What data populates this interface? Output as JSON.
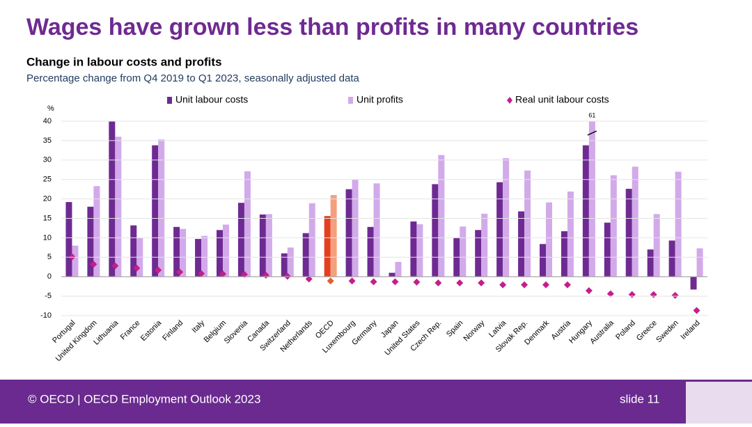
{
  "slide": {
    "title": "Wages have grown less than profits in many countries",
    "footer": "© OECD | OECD Employment Outlook 2023",
    "slide_number": "slide 11"
  },
  "chart_data": {
    "type": "bar",
    "title": "Change in labour costs and profits",
    "subtitle": "Percentage change from Q4 2019 to Q1 2023, seasonally adjusted data",
    "y_label": "%",
    "categories": [
      "Portugal",
      "United Kingdom",
      "Lithuania",
      "France",
      "Estonia",
      "Finland",
      "Italy",
      "Belgium",
      "Slovenia",
      "Canada",
      "Switzerland",
      "Netherlands",
      "OECD",
      "Luxembourg",
      "Germany",
      "Japan",
      "United States",
      "Czech Rep.",
      "Spain",
      "Norway",
      "Latvia",
      "Slovak Rep.",
      "Denmark",
      "Austria",
      "Hungary",
      "Australia",
      "Poland",
      "Greece",
      "Sweden",
      "Ireland"
    ],
    "highlight": 12,
    "series": [
      {
        "name": "Unit labour costs",
        "kind": "bar",
        "color": "#6e2a92",
        "highlight_color": "#e2401f",
        "values": [
          19.2,
          18,
          40,
          13.2,
          33.8,
          12.8,
          9.7,
          12,
          19,
          16,
          6,
          11.2,
          15.6,
          22.5,
          12.8,
          1,
          14.2,
          23.8,
          10,
          12,
          24.3,
          16.8,
          8.4,
          11.7,
          33.8,
          13.9,
          22.6,
          7,
          9.3,
          -3.3
        ]
      },
      {
        "name": "Unit profits",
        "kind": "bar",
        "color": "#d2aaea",
        "highlight_color": "#f4a07c",
        "values": [
          8,
          23.3,
          36,
          9.9,
          35.3,
          12.3,
          10.5,
          13.4,
          27.1,
          16.1,
          7.5,
          18.9,
          21,
          25,
          24,
          3.8,
          13.5,
          31.3,
          12.9,
          16.2,
          30.5,
          27.3,
          19.1,
          21.9,
          61,
          26.1,
          28.3,
          16.1,
          27,
          7.3
        ],
        "value_labels": [
          null,
          null,
          null,
          null,
          null,
          null,
          null,
          null,
          null,
          null,
          null,
          null,
          null,
          null,
          null,
          null,
          null,
          null,
          null,
          null,
          null,
          null,
          null,
          null,
          "61",
          null,
          null,
          null,
          null,
          null
        ]
      },
      {
        "name": "Real unit labour costs",
        "kind": "diamond",
        "color": "#c41e8c",
        "highlight_color": "#e2602f",
        "values": [
          5.1,
          3.2,
          2.8,
          2.2,
          1.7,
          1.2,
          0.8,
          0.7,
          0.6,
          0.4,
          0.1,
          -0.6,
          -1.1,
          -1.1,
          -1.3,
          -1.3,
          -1.4,
          -1.6,
          -1.6,
          -1.6,
          -2.1,
          -2.1,
          -2.1,
          -2.1,
          -3.6,
          -4.4,
          -4.6,
          -4.6,
          -4.8,
          -8.7
        ]
      }
    ],
    "ylim": [
      -10,
      40
    ],
    "yticks": [
      -10,
      -5,
      0,
      5,
      10,
      15,
      20,
      25,
      30,
      35,
      40
    ],
    "grid": true
  }
}
